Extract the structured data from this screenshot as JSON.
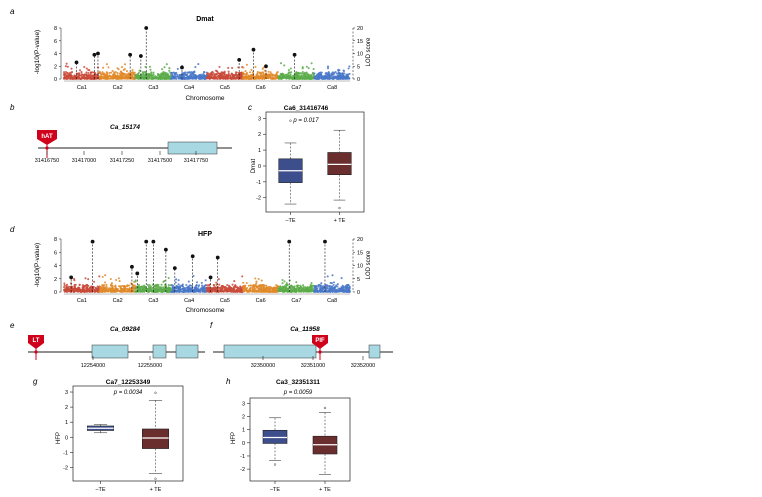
{
  "panels": {
    "a": {
      "letter": "a",
      "title": "Dmat",
      "ylabel": "-log10(P-value)",
      "y2label": "LOD score",
      "xlabel": "Chromosome",
      "yticks": [
        "0",
        "2",
        "4",
        "6",
        "8"
      ],
      "y2ticks": [
        "0",
        "5",
        "10",
        "15",
        "20"
      ],
      "chromosomes": [
        "Ca1",
        "Ca2",
        "Ca3",
        "Ca4",
        "Ca5",
        "Ca6",
        "Ca7",
        "Ca8"
      ],
      "colors": [
        "#c94a3a",
        "#e08a2a",
        "#5cab4a",
        "#4a78c8",
        "#c94a3a",
        "#e08a2a",
        "#5cab4a",
        "#4a78c8"
      ]
    },
    "b": {
      "letter": "b",
      "gene": "Ca_15174",
      "te_label": "hAT",
      "ticks": [
        "31416750",
        "31417000",
        "31417250",
        "31417500",
        "31417750"
      ]
    },
    "c": {
      "letter": "c",
      "title": "Ca6_31416746",
      "pvalue": "p = 0.017",
      "ylabel": "Dmat",
      "yticks": [
        "-2",
        "-1",
        "0",
        "1",
        "2",
        "3"
      ],
      "groups": [
        "–TE",
        "+ TE"
      ]
    },
    "d": {
      "letter": "d",
      "title": "HFP",
      "ylabel": "-log10(P-value)",
      "y2label": "LOD score",
      "xlabel": "Chromosome",
      "yticks": [
        "0",
        "2",
        "4",
        "6",
        "8"
      ],
      "y2ticks": [
        "0",
        "5",
        "10",
        "15",
        "20"
      ],
      "chromosomes": [
        "Ca1",
        "Ca2",
        "Ca3",
        "Ca4",
        "Ca5",
        "Ca6",
        "Ca7",
        "Ca8"
      ]
    },
    "e": {
      "letter": "e",
      "gene": "Ca_09284",
      "te_label": "LT",
      "ticks": [
        "12254000",
        "12255000"
      ]
    },
    "f": {
      "letter": "f",
      "gene": "Ca_11958",
      "te_label": "PIF",
      "ticks": [
        "32350000",
        "32351000",
        "32352000"
      ]
    },
    "g": {
      "letter": "g",
      "title": "Ca7_12253349",
      "pvalue": "p = 0.0034",
      "ylabel": "HFP",
      "yticks": [
        "-2",
        "-1",
        "0",
        "1",
        "2",
        "3"
      ],
      "groups": [
        "–TE",
        "+ TE"
      ]
    },
    "h": {
      "letter": "h",
      "title": "Ca3_32351311",
      "pvalue": "p = 0.0059",
      "ylabel": "HFP",
      "yticks": [
        "-2",
        "-1",
        "0",
        "1",
        "2",
        "3"
      ],
      "groups": [
        "–TE",
        "+ TE"
      ]
    }
  },
  "chart_data": [
    {
      "id": "a",
      "type": "scatter",
      "title": "Dmat",
      "xlabel": "Chromosome",
      "ylabel": "-log10(P-value)",
      "ylim": [
        0,
        8
      ],
      "y2label": "LOD score",
      "y2lim": [
        0,
        20
      ],
      "categories": [
        "Ca1",
        "Ca2",
        "Ca3",
        "Ca4",
        "Ca5",
        "Ca6",
        "Ca7",
        "Ca8"
      ],
      "lod_peaks": [
        {
          "chr": "Ca1",
          "pos": 0.35,
          "lod": 6.5
        },
        {
          "chr": "Ca1",
          "pos": 0.85,
          "lod": 9.5
        },
        {
          "chr": "Ca1",
          "pos": 0.95,
          "lod": 10.0
        },
        {
          "chr": "Ca2",
          "pos": 0.85,
          "lod": 9.5
        },
        {
          "chr": "Ca3",
          "pos": 0.15,
          "lod": 9.0
        },
        {
          "chr": "Ca3",
          "pos": 0.3,
          "lod": 20.0
        },
        {
          "chr": "Ca4",
          "pos": 0.3,
          "lod": 4.5
        },
        {
          "chr": "Ca5",
          "pos": 0.9,
          "lod": 7.5
        },
        {
          "chr": "Ca6",
          "pos": 0.3,
          "lod": 11.5
        },
        {
          "chr": "Ca6",
          "pos": 0.65,
          "lod": 5.0
        },
        {
          "chr": "Ca7",
          "pos": 0.45,
          "lod": 9.5
        }
      ]
    },
    {
      "id": "c",
      "type": "box",
      "title": "Ca6_31416746",
      "ylabel": "Dmat",
      "ylim": [
        -2.9,
        3.4
      ],
      "pvalue": 0.017,
      "categories": [
        "–TE",
        "+ TE"
      ],
      "colors": [
        "#3d4e8c",
        "#6b2e2e"
      ],
      "boxes": [
        {
          "min": -2.4,
          "q1": -1.05,
          "median": -0.3,
          "q3": 0.45,
          "max": 1.45,
          "outliers": [
            2.85
          ]
        },
        {
          "min": -2.15,
          "q1": -0.55,
          "median": 0.1,
          "q3": 0.85,
          "max": 2.25,
          "outliers": [
            -2.65
          ]
        }
      ]
    },
    {
      "id": "d",
      "type": "scatter",
      "title": "HFP",
      "xlabel": "Chromosome",
      "ylabel": "-log10(P-value)",
      "ylim": [
        0,
        8
      ],
      "y2label": "LOD score",
      "y2lim": [
        0,
        20
      ],
      "categories": [
        "Ca1",
        "Ca2",
        "Ca3",
        "Ca4",
        "Ca5",
        "Ca6",
        "Ca7",
        "Ca8"
      ],
      "lod_peaks": [
        {
          "chr": "Ca1",
          "pos": 0.2,
          "lod": 5.5
        },
        {
          "chr": "Ca1",
          "pos": 0.8,
          "lod": 19.0
        },
        {
          "chr": "Ca2",
          "pos": 0.9,
          "lod": 9.5
        },
        {
          "chr": "Ca3",
          "pos": 0.05,
          "lod": 7.0
        },
        {
          "chr": "Ca3",
          "pos": 0.3,
          "lod": 19.0
        },
        {
          "chr": "Ca3",
          "pos": 0.5,
          "lod": 19.0
        },
        {
          "chr": "Ca3",
          "pos": 0.85,
          "lod": 16.0
        },
        {
          "chr": "Ca4",
          "pos": 0.1,
          "lod": 9.0
        },
        {
          "chr": "Ca4",
          "pos": 0.6,
          "lod": 13.5
        },
        {
          "chr": "Ca5",
          "pos": 0.1,
          "lod": 5.5
        },
        {
          "chr": "Ca5",
          "pos": 0.3,
          "lod": 13.0
        },
        {
          "chr": "Ca7",
          "pos": 0.3,
          "lod": 19.0
        },
        {
          "chr": "Ca8",
          "pos": 0.3,
          "lod": 19.0
        }
      ]
    },
    {
      "id": "g",
      "type": "box",
      "title": "Ca7_12253349",
      "ylabel": "HFP",
      "ylim": [
        -2.9,
        3.4
      ],
      "pvalue": 0.0034,
      "categories": [
        "–TE",
        "+ TE"
      ],
      "colors": [
        "#3d4e8c",
        "#6b2e2e"
      ],
      "boxes": [
        {
          "min": 0.3,
          "q1": 0.45,
          "median": 0.6,
          "q3": 0.75,
          "max": 0.85,
          "outliers": []
        },
        {
          "min": -2.4,
          "q1": -0.75,
          "median": -0.05,
          "q3": 0.55,
          "max": 2.45,
          "outliers": [
            2.95,
            -2.75
          ]
        }
      ]
    },
    {
      "id": "h",
      "type": "box",
      "title": "Ca3_32351311",
      "ylabel": "HFP",
      "ylim": [
        -2.9,
        3.4
      ],
      "pvalue": 0.0059,
      "categories": [
        "–TE",
        "+ TE"
      ],
      "colors": [
        "#3d4e8c",
        "#6b2e2e"
      ],
      "boxes": [
        {
          "min": -1.35,
          "q1": -0.05,
          "median": 0.4,
          "q3": 0.95,
          "max": 1.9,
          "outliers": [
            -1.65
          ]
        },
        {
          "min": -2.4,
          "q1": -0.85,
          "median": -0.15,
          "q3": 0.5,
          "max": 2.3,
          "outliers": [
            2.65
          ]
        }
      ]
    }
  ]
}
